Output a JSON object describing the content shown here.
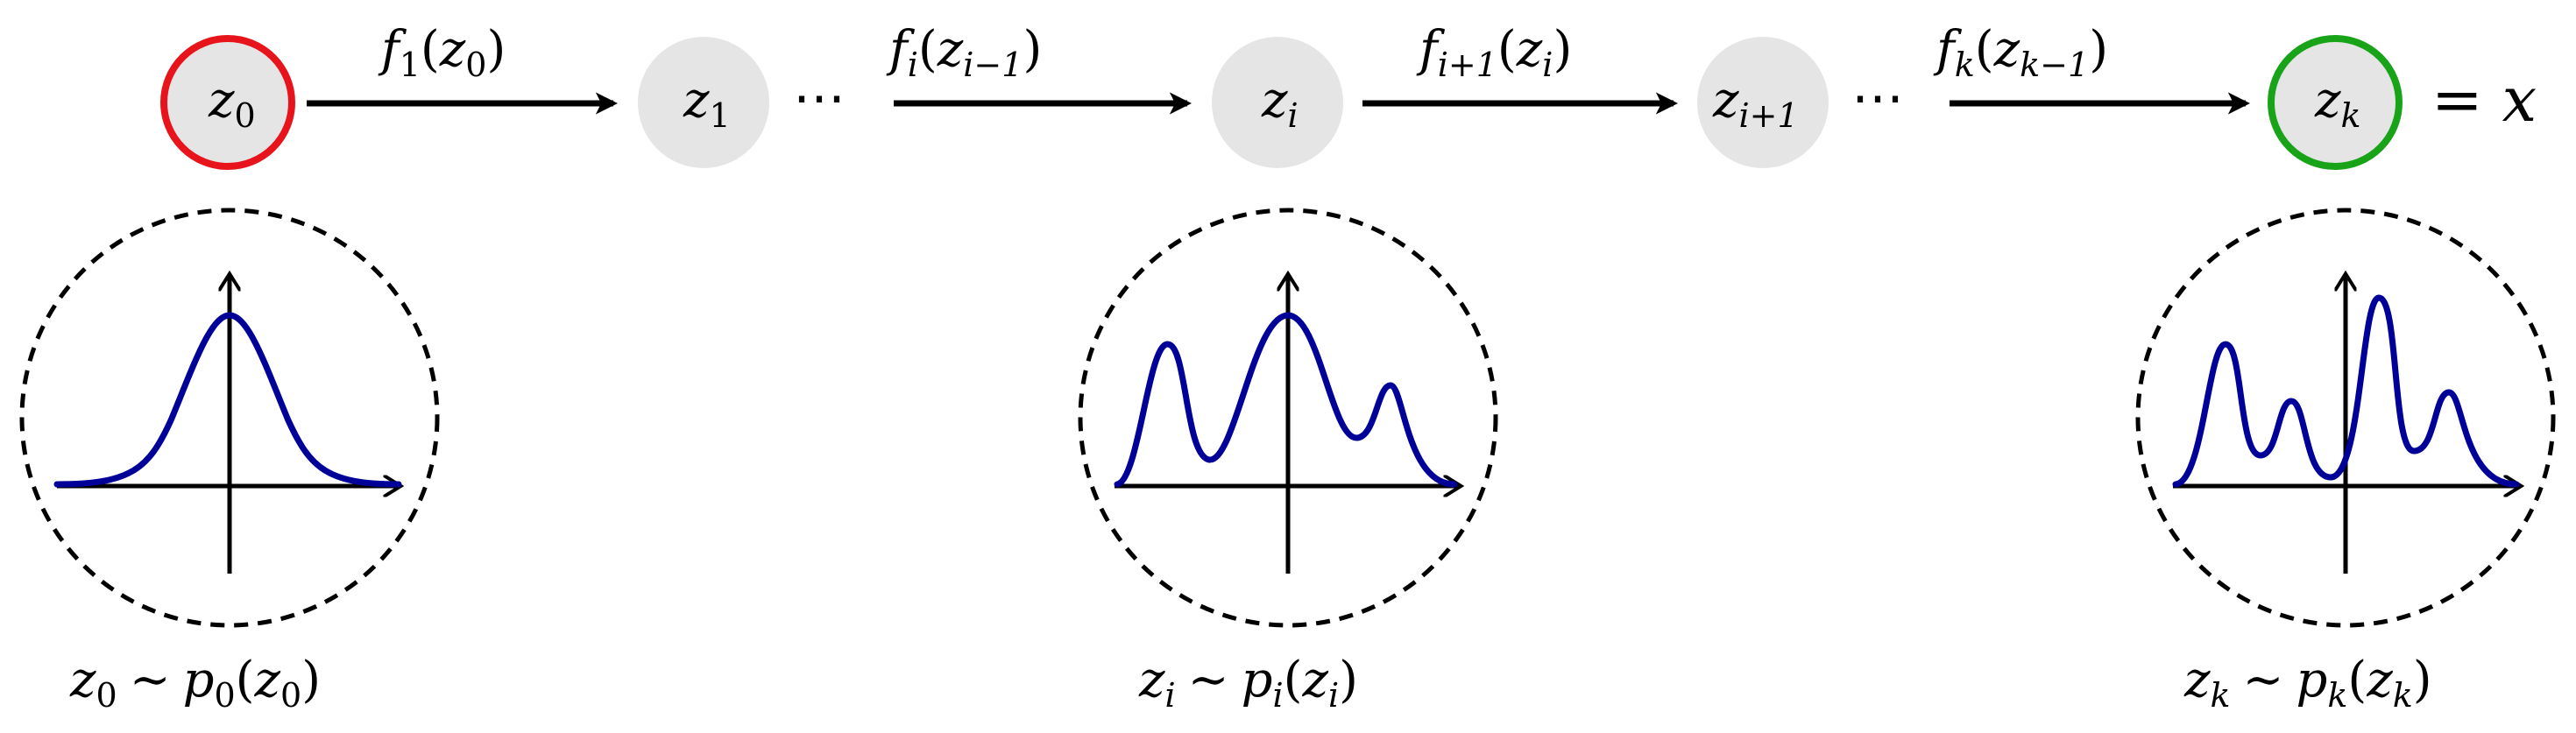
{
  "nodes": [
    {
      "id": "z0",
      "base": "z",
      "sub": "0",
      "border": "#e8141b"
    },
    {
      "id": "z1",
      "base": "z",
      "sub": "1",
      "border": ""
    },
    {
      "id": "zi",
      "base": "z",
      "sub": "i",
      "border": ""
    },
    {
      "id": "zi1",
      "base": "z",
      "sub": "i+1",
      "border": ""
    },
    {
      "id": "zk",
      "base": "z",
      "sub": "k",
      "border": "#19a319"
    }
  ],
  "edges": [
    {
      "fn": "f",
      "fn_sub": "1",
      "arg": "z",
      "arg_sub": "0"
    },
    {
      "fn": "f",
      "fn_sub": "i",
      "arg": "z",
      "arg_sub": "i−1"
    },
    {
      "fn": "f",
      "fn_sub": "i+1",
      "arg": "z",
      "arg_sub": "i"
    },
    {
      "fn": "f",
      "fn_sub": "k",
      "arg": "z",
      "arg_sub": "k−1"
    }
  ],
  "ellipsis": "⋯",
  "equals_x": {
    "eq": "=",
    "var": "x"
  },
  "distributions": [
    {
      "var": "z",
      "sub": "0",
      "sim": "∼",
      "dens": "p",
      "arg": "z"
    },
    {
      "var": "z",
      "sub": "i",
      "sim": "∼",
      "dens": "p",
      "arg": "z"
    },
    {
      "var": "z",
      "sub": "k",
      "sim": "∼",
      "dens": "p",
      "arg": "z"
    }
  ],
  "colors": {
    "start_node_border": "#e8141b",
    "end_node_border": "#19a319",
    "node_fill": "#e5e5e5",
    "density_curve": "#000099"
  }
}
